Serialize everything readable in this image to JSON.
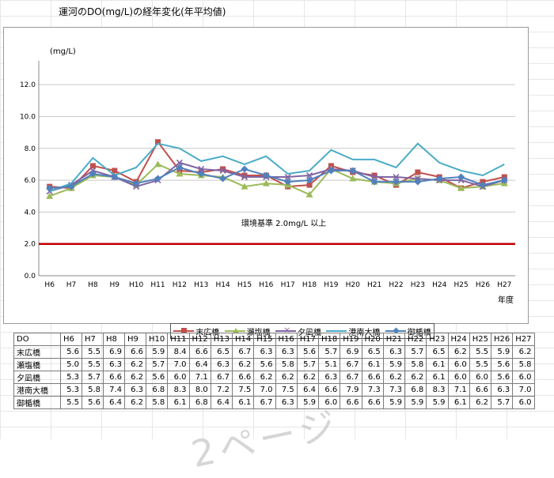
{
  "sheet": {
    "title": "運河のDO(mg/L)の経年変化(年平均値)"
  },
  "chart_data": {
    "type": "line",
    "title": "",
    "ylabel": "(mg/L)",
    "xlabel": "年度",
    "ylim": [
      0,
      13
    ],
    "yticks": [
      "0.0",
      "2.0",
      "4.0",
      "6.0",
      "8.0",
      "10.0",
      "12.0"
    ],
    "categories": [
      "H6",
      "H7",
      "H8",
      "H9",
      "H10",
      "H11",
      "H12",
      "H13",
      "H14",
      "H15",
      "H16",
      "H17",
      "H18",
      "H19",
      "H20",
      "H21",
      "H22",
      "H23",
      "H24",
      "H25",
      "H26",
      "H27"
    ],
    "series": [
      {
        "name": "末広橋",
        "color": "#c0504d",
        "marker": "square",
        "values": [
          5.6,
          5.5,
          6.9,
          6.6,
          5.9,
          8.4,
          6.6,
          6.5,
          6.7,
          6.3,
          6.3,
          5.6,
          5.7,
          6.9,
          6.5,
          6.3,
          5.7,
          6.5,
          6.2,
          5.5,
          5.9,
          6.2
        ]
      },
      {
        "name": "瀬塩橋",
        "color": "#9bbb59",
        "marker": "triangle",
        "values": [
          5.0,
          5.5,
          6.3,
          6.2,
          5.7,
          7.0,
          6.4,
          6.3,
          6.2,
          5.6,
          5.8,
          5.7,
          5.1,
          6.7,
          6.1,
          5.9,
          5.8,
          6.1,
          6.0,
          5.5,
          5.6,
          5.8
        ]
      },
      {
        "name": "夕凪橋",
        "color": "#8064a2",
        "marker": "x",
        "values": [
          5.3,
          5.7,
          6.6,
          6.2,
          5.6,
          6.0,
          7.1,
          6.7,
          6.6,
          6.2,
          6.2,
          6.2,
          6.3,
          6.7,
          6.6,
          6.2,
          6.2,
          6.1,
          6.0,
          6.0,
          5.6,
          6.0
        ]
      },
      {
        "name": "港南大橋",
        "color": "#4bacc6",
        "marker": "none",
        "values": [
          5.3,
          5.8,
          7.4,
          6.3,
          6.8,
          8.3,
          8.0,
          7.2,
          7.5,
          7.0,
          7.5,
          6.4,
          6.6,
          7.9,
          7.3,
          7.3,
          6.8,
          8.3,
          7.1,
          6.6,
          6.3,
          7.0
        ]
      },
      {
        "name": "御楯橋",
        "color": "#4f81bd",
        "marker": "diamond",
        "values": [
          5.5,
          5.6,
          6.4,
          6.2,
          5.8,
          6.1,
          6.8,
          6.4,
          6.1,
          6.7,
          6.3,
          5.9,
          6.0,
          6.6,
          6.6,
          5.9,
          5.9,
          5.9,
          6.1,
          6.2,
          5.7,
          6.0
        ]
      }
    ],
    "reference_line": {
      "value": 2.0,
      "label": "環境基準 2.0mg/L 以上",
      "color": "#c00000"
    },
    "legend": "bottom",
    "grid": true
  },
  "table": {
    "header_label": "DO",
    "columns": [
      "H6",
      "H7",
      "H8",
      "H9",
      "H10",
      "H11",
      "H12",
      "H13",
      "H14",
      "H15",
      "H16",
      "H17",
      "H18",
      "H19",
      "H20",
      "H21",
      "H22",
      "H23",
      "H24",
      "H25",
      "H26",
      "H27"
    ],
    "rows": [
      {
        "label": "末広橋",
        "values": [
          "5.6",
          "5.5",
          "6.9",
          "6.6",
          "5.9",
          "8.4",
          "6.6",
          "6.5",
          "6.7",
          "6.3",
          "6.3",
          "5.6",
          "5.7",
          "6.9",
          "6.5",
          "6.3",
          "5.7",
          "6.5",
          "6.2",
          "5.5",
          "5.9",
          "6.2"
        ]
      },
      {
        "label": "瀬塩橋",
        "values": [
          "5.0",
          "5.5",
          "6.3",
          "6.2",
          "5.7",
          "7.0",
          "6.4",
          "6.3",
          "6.2",
          "5.6",
          "5.8",
          "5.7",
          "5.1",
          "6.7",
          "6.1",
          "5.9",
          "5.8",
          "6.1",
          "6.0",
          "5.5",
          "5.6",
          "5.8"
        ]
      },
      {
        "label": "夕凪橋",
        "values": [
          "5.3",
          "5.7",
          "6.6",
          "6.2",
          "5.6",
          "6.0",
          "7.1",
          "6.7",
          "6.6",
          "6.2",
          "6.2",
          "6.2",
          "6.3",
          "6.7",
          "6.6",
          "6.2",
          "6.2",
          "6.1",
          "6.0",
          "6.0",
          "5.6",
          "6.0"
        ]
      },
      {
        "label": "港南大橋",
        "values": [
          "5.3",
          "5.8",
          "7.4",
          "6.3",
          "6.8",
          "8.3",
          "8.0",
          "7.2",
          "7.5",
          "7.0",
          "7.5",
          "6.4",
          "6.6",
          "7.9",
          "7.3",
          "7.3",
          "6.8",
          "8.3",
          "7.1",
          "6.6",
          "6.3",
          "7.0"
        ]
      },
      {
        "label": "御楯橋",
        "values": [
          "5.5",
          "5.6",
          "6.4",
          "6.2",
          "5.8",
          "6.1",
          "6.8",
          "6.4",
          "6.1",
          "6.7",
          "6.3",
          "5.9",
          "6.0",
          "6.6",
          "6.6",
          "5.9",
          "5.9",
          "5.9",
          "6.1",
          "6.2",
          "5.7",
          "6.0"
        ]
      }
    ]
  },
  "watermark": "2ページ"
}
